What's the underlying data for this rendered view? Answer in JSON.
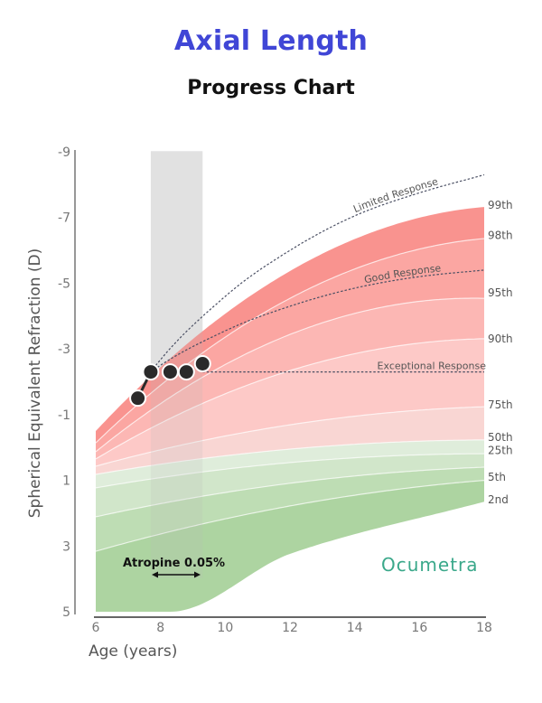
{
  "header": {
    "title": "Axial Length",
    "subtitle": "Progress Chart"
  },
  "brand": "Ocumetra",
  "chart_data": {
    "type": "area",
    "title": "Axial Length",
    "subtitle": "Progress Chart",
    "xlabel": "Age (years)",
    "ylabel": "Spherical Equivalent Refraction (D)",
    "xlim": [
      6,
      18
    ],
    "ylim": [
      5,
      -9
    ],
    "y_inverted": true,
    "xticks": [
      "6",
      "8",
      "10",
      "12",
      "14",
      "16",
      "18"
    ],
    "yticks": [
      "-9",
      "-7",
      "-5",
      "-3",
      "-1",
      "1",
      "3",
      "5"
    ],
    "grid": false,
    "percentile_curves": [
      {
        "name": "99th",
        "x": [
          6,
          12,
          18
        ],
        "y": [
          -0.5,
          -5.37,
          -7.32
        ],
        "color": "#f98a86"
      },
      {
        "name": "98th",
        "x": [
          6,
          12,
          18
        ],
        "y": [
          -0.14,
          -4.54,
          -6.36
        ],
        "color": "#fb9e9a"
      },
      {
        "name": "95th",
        "x": [
          6,
          12,
          18
        ],
        "y": [
          0.13,
          -3.44,
          -4.54
        ],
        "color": "#fcb1ae"
      },
      {
        "name": "90th",
        "x": [
          6,
          12,
          18
        ],
        "y": [
          0.35,
          -2.34,
          -3.31
        ],
        "color": "#fdc4c2"
      },
      {
        "name": "75th",
        "x": [
          6,
          12,
          18
        ],
        "y": [
          0.57,
          -0.69,
          -1.24
        ],
        "color": "#f8d2cf"
      },
      {
        "name": "50th",
        "x": [
          6,
          12,
          18
        ],
        "y": [
          0.82,
          0.05,
          -0.23
        ],
        "color": "#dcebd8"
      },
      {
        "name": "25th",
        "x": [
          6,
          12,
          18
        ],
        "y": [
          1.23,
          0.46,
          0.19
        ],
        "color": "#cde4c6"
      },
      {
        "name": "",
        "x": [
          6,
          12,
          18
        ],
        "y": [
          2.11,
          1.09,
          0.6
        ],
        "color": "#b9daae"
      },
      {
        "name": "5th",
        "x": [
          6,
          12,
          18
        ],
        "y": [
          3.16,
          1.78,
          1.0
        ],
        "color": "#a6d099"
      },
      {
        "name": "2nd",
        "x": [
          6,
          8.3,
          12,
          18
        ],
        "y": [
          5,
          5,
          3.24,
          1.65
        ],
        "color": "#9ccb8e"
      }
    ],
    "percentile_labels": [
      {
        "label": "99th",
        "y": -7.32
      },
      {
        "label": "98th",
        "y": -6.4
      },
      {
        "label": "95th",
        "y": -4.65
      },
      {
        "label": "90th",
        "y": -3.25
      },
      {
        "label": "75th",
        "y": -1.24
      },
      {
        "label": "50th",
        "y": -0.26
      },
      {
        "label": "25th",
        "y": 0.15
      },
      {
        "label": "5th",
        "y": 0.95
      },
      {
        "label": "2nd",
        "y": 1.65
      }
    ],
    "response_curves": [
      {
        "name": "Limited Response",
        "x": [
          7.7,
          10,
          12,
          14,
          16,
          18
        ],
        "y": [
          -2.3,
          -4.6,
          -6.0,
          -7.05,
          -7.75,
          -8.3
        ]
      },
      {
        "name": "Good Response",
        "x": [
          7.7,
          10,
          12,
          14,
          16,
          18
        ],
        "y": [
          -2.3,
          -3.55,
          -4.3,
          -4.85,
          -5.2,
          -5.4
        ]
      },
      {
        "name": "Exceptional Response",
        "x": [
          9.3,
          18
        ],
        "y": [
          -2.3,
          -2.3
        ]
      }
    ],
    "measurements": {
      "name": "Patient",
      "x": [
        7.3,
        7.7,
        8.3,
        8.8,
        9.3
      ],
      "y": [
        -1.5,
        -2.3,
        -2.3,
        -2.3,
        -2.55
      ],
      "color": "#2a2a2a"
    },
    "treatment_band": {
      "label": "Atropine 0.05%",
      "x_start": 7.7,
      "x_end": 9.3
    }
  }
}
